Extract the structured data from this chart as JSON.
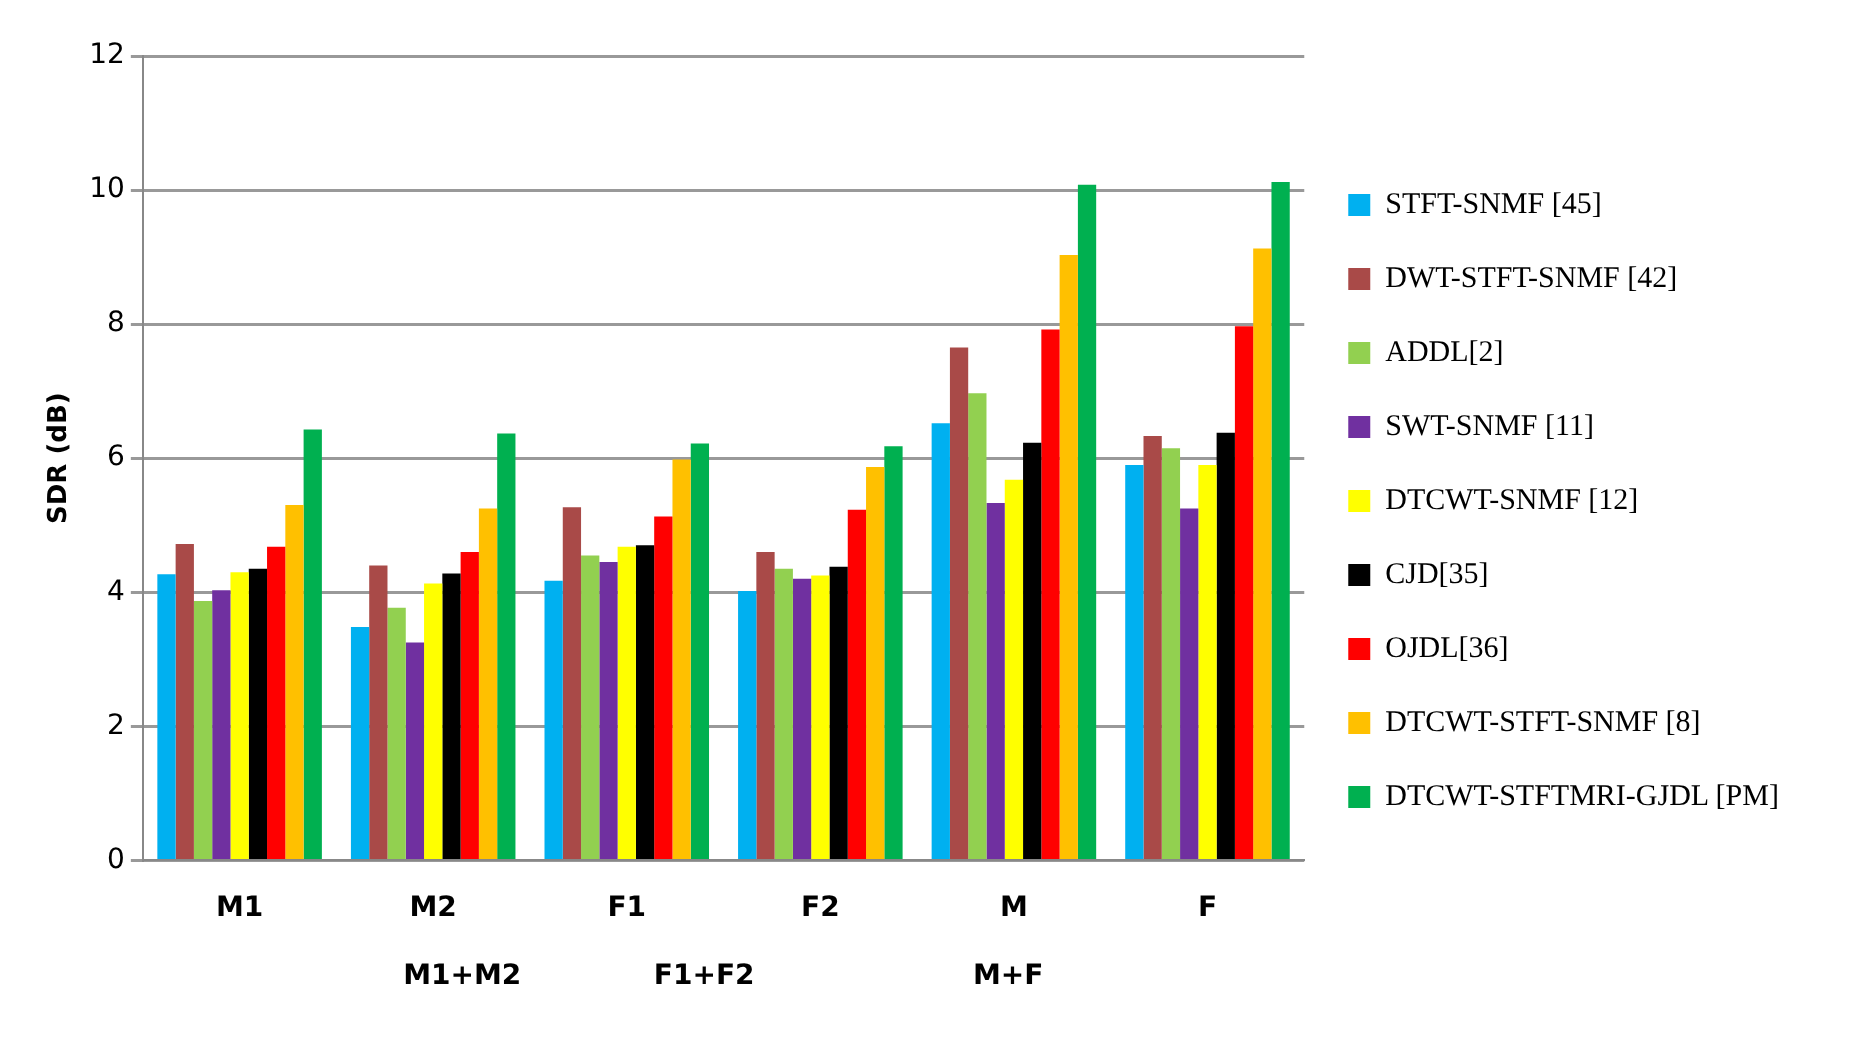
{
  "chart_data": {
    "type": "bar",
    "ylabel": "SDR (dB)",
    "categories": [
      "M1",
      "M2",
      "F1",
      "F2",
      "M",
      "F"
    ],
    "annotations": [
      "M1+M2",
      "F1+F2",
      "M+F"
    ],
    "series": [
      {
        "name": "STFT-SNMF [45]",
        "color": "#00b0f0",
        "values": [
          4.27,
          3.48,
          4.17,
          4.02,
          6.52,
          5.9
        ]
      },
      {
        "name": "DWT-STFT-SNMF [42]",
        "color": "#a94a48",
        "values": [
          4.72,
          4.4,
          5.27,
          4.6,
          7.65,
          6.33
        ]
      },
      {
        "name": "ADDL[2]",
        "color": "#92d050",
        "values": [
          3.87,
          3.77,
          4.55,
          4.35,
          6.97,
          6.15
        ]
      },
      {
        "name": "SWT-SNMF [11]",
        "color": "#7030a0",
        "values": [
          4.03,
          3.25,
          4.45,
          4.2,
          5.33,
          5.25
        ]
      },
      {
        "name": "DTCWT-SNMF [12]",
        "color": "#ffff00",
        "values": [
          4.3,
          4.13,
          4.68,
          4.25,
          5.68,
          5.9
        ]
      },
      {
        "name": "CJD[35]",
        "color": "#000000",
        "values": [
          4.35,
          4.28,
          4.7,
          4.38,
          6.23,
          6.38
        ]
      },
      {
        "name": "OJDL[36]",
        "color": "#ff0000",
        "values": [
          4.68,
          4.6,
          5.13,
          5.23,
          7.92,
          7.97
        ]
      },
      {
        "name": "DTCWT-STFT-SNMF [8]",
        "color": "#ffc000",
        "values": [
          5.3,
          5.25,
          5.98,
          5.87,
          9.03,
          9.13
        ]
      },
      {
        "name": "DTCWT-STFTMRI-GJDL [PM]",
        "color": "#00b050",
        "values": [
          6.43,
          6.37,
          6.22,
          6.18,
          10.08,
          10.12
        ]
      }
    ],
    "ylim": [
      0,
      12
    ],
    "yticks": [
      0,
      2,
      4,
      6,
      8,
      10,
      12
    ],
    "grid": "y",
    "legend": "right"
  }
}
